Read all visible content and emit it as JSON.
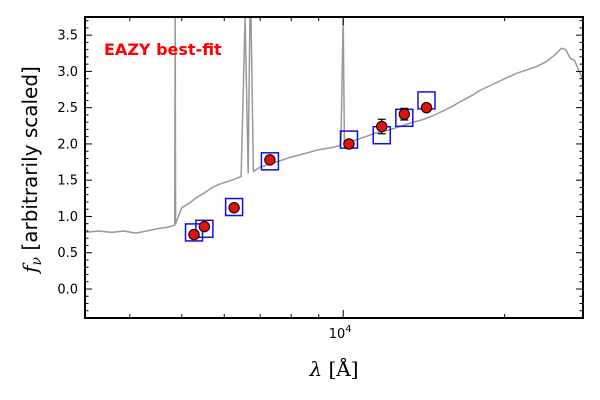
{
  "chart_data": {
    "type": "scatter",
    "xscale": "log",
    "xlim": [
      3300,
      28000
    ],
    "ylim": [
      -0.4,
      3.75
    ],
    "xlabel": "λ [Å]",
    "ylabel": "fν [arbitrarily scaled]",
    "x_tick_labels": [
      {
        "value": 10000,
        "label": "10^4"
      }
    ],
    "y_ticks": [
      0.0,
      0.5,
      1.0,
      1.5,
      2.0,
      2.5,
      3.0,
      3.5
    ],
    "y_tick_labels": [
      "0.0",
      "0.5",
      "1.0",
      "1.5",
      "2.0",
      "2.5",
      "3.0",
      "3.5"
    ],
    "grid": false,
    "annotation": "EAZY best-fit",
    "colors": {
      "template": "#999999",
      "points": "#dd1111",
      "model_boxes": "#1111dd",
      "annotation": "#ff0000"
    },
    "template_spectrum": {
      "name": "EAZY best-fit",
      "x": [
        3300,
        3500,
        3700,
        3900,
        4100,
        4300,
        4500,
        4700,
        4850,
        4861,
        4870,
        5000,
        5200,
        5300,
        5500,
        5700,
        5900,
        6200,
        6450,
        6563,
        6650,
        6700,
        6731,
        6800,
        7000,
        7500,
        8000,
        8500,
        9000,
        9500,
        9900,
        10000,
        10050,
        10100,
        10500,
        11000,
        11500,
        12000,
        12500,
        13000,
        13500,
        14000,
        14500,
        15000,
        15500,
        16000,
        16500,
        17000,
        17500,
        18000,
        19000,
        20000,
        21000,
        22000,
        23000,
        24000,
        25000,
        25500,
        26000,
        26500,
        27000,
        28000
      ],
      "y": [
        0.78,
        0.8,
        0.78,
        0.8,
        0.77,
        0.8,
        0.83,
        0.85,
        0.88,
        3.75,
        0.9,
        1.12,
        1.2,
        1.25,
        1.32,
        1.4,
        1.45,
        1.5,
        1.55,
        3.75,
        1.6,
        3.75,
        3.75,
        1.62,
        1.68,
        1.75,
        1.82,
        1.87,
        1.92,
        1.95,
        1.98,
        3.75,
        2.0,
        2.02,
        2.05,
        2.1,
        2.15,
        2.18,
        2.22,
        2.26,
        2.3,
        2.33,
        2.37,
        2.42,
        2.47,
        2.52,
        2.58,
        2.63,
        2.68,
        2.74,
        2.82,
        2.9,
        2.97,
        3.02,
        3.07,
        3.14,
        3.25,
        3.32,
        3.3,
        3.18,
        3.15,
        2.88
      ]
    },
    "series": [
      {
        "type": "observed",
        "x": [
          5270,
          5510,
          6260,
          7300,
          10250,
          11800,
          13000,
          14300
        ],
        "y": [
          0.75,
          0.86,
          1.12,
          1.78,
          2.0,
          2.24,
          2.41,
          2.5
        ],
        "yerr": [
          0.02,
          0.02,
          0.02,
          0.03,
          0.03,
          0.1,
          0.08,
          0.03
        ]
      },
      {
        "type": "model",
        "x": [
          5270,
          5510,
          6260,
          7300,
          10250,
          11800,
          13000,
          14300
        ],
        "y": [
          0.78,
          0.83,
          1.13,
          1.76,
          2.06,
          2.12,
          2.36,
          2.6
        ]
      }
    ]
  }
}
